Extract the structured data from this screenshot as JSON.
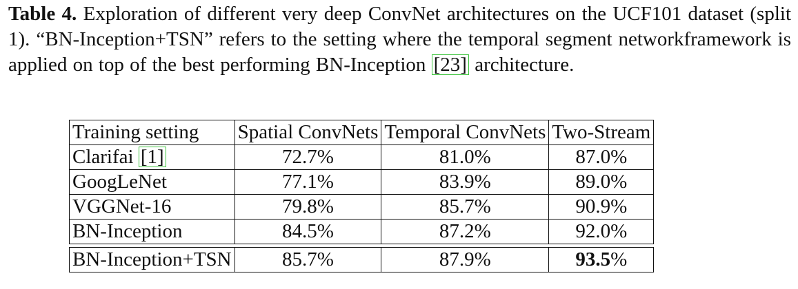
{
  "caption": {
    "label": "Table 4.",
    "text_before_cite": "Exploration of different very deep ConvNet architectures on the UCF101 dataset (split 1). “BN-Inception+TSN” refers to the setting where the temporal segment networkframework is applied on top of the best performing BN-Inception",
    "cite": "[23]",
    "text_after_cite": "architecture."
  },
  "table": {
    "headers": [
      "Training setting",
      "Spatial ConvNets",
      "Temporal ConvNets",
      "Two-Stream"
    ],
    "rows": [
      {
        "setting": "Clarifai",
        "cite": "[1]",
        "spatial": "72.7%",
        "temporal": "81.0%",
        "two_stream": "87.0%"
      },
      {
        "setting": "GoogLeNet",
        "spatial": "77.1%",
        "temporal": "83.9%",
        "two_stream": "89.0%"
      },
      {
        "setting": "VGGNet-16",
        "spatial": "79.8%",
        "temporal": "85.7%",
        "two_stream": "90.9%"
      },
      {
        "setting": "BN-Inception",
        "spatial": "84.5%",
        "temporal": "87.2%",
        "two_stream": "92.0%"
      }
    ],
    "final_row": {
      "setting": "BN-Inception+TSN",
      "spatial": "85.7%",
      "temporal": "87.9%",
      "two_stream_bold": "93.5",
      "two_stream_suffix": "%"
    }
  }
}
